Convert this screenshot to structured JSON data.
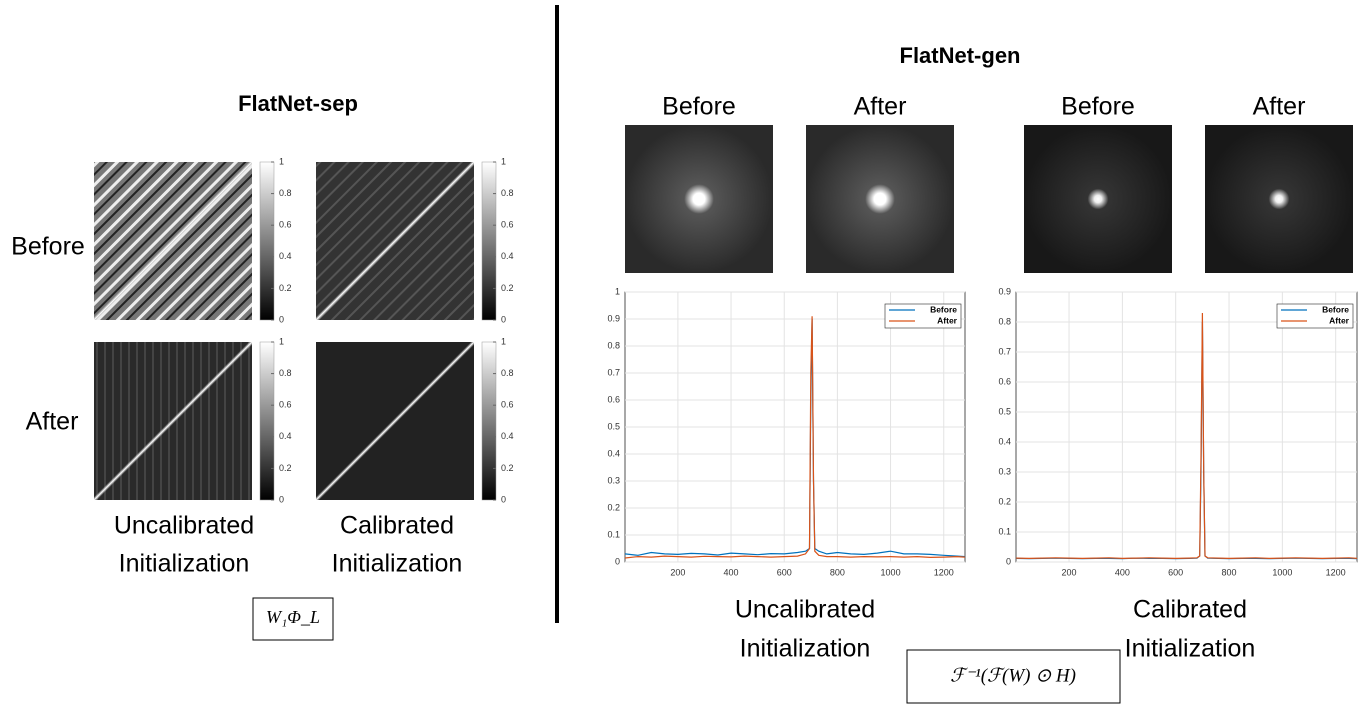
{
  "left": {
    "title": "FlatNet-sep",
    "row_labels": [
      "Before",
      "After"
    ],
    "col_labels": [
      [
        "Uncalibrated",
        "Initialization"
      ],
      [
        "Calibrated",
        "Initialization"
      ]
    ],
    "colorbar_ticks": [
      0,
      0.2,
      0.4,
      0.6,
      0.8,
      1
    ],
    "formula": "W₁Φ_L"
  },
  "right": {
    "title": "FlatNet-gen",
    "image_labels": [
      "Before",
      "After",
      "Before",
      "After"
    ],
    "col_labels": [
      [
        "Uncalibrated",
        "Initialization"
      ],
      [
        "Calibrated",
        "Initialization"
      ]
    ],
    "formula": "ℱ⁻¹(ℱ(W) ⊙ H)"
  },
  "chart_data": [
    {
      "type": "line",
      "x": [
        1,
        50,
        100,
        150,
        200,
        250,
        300,
        350,
        400,
        450,
        500,
        550,
        600,
        650,
        680,
        695,
        700,
        705,
        710,
        715,
        730,
        760,
        800,
        850,
        900,
        950,
        1000,
        1050,
        1100,
        1150,
        1200,
        1250,
        1280
      ],
      "series": [
        {
          "name": "Before",
          "color": "#0072bd",
          "values": [
            0.03,
            0.025,
            0.035,
            0.03,
            0.028,
            0.032,
            0.03,
            0.026,
            0.033,
            0.03,
            0.027,
            0.031,
            0.03,
            0.035,
            0.04,
            0.05,
            0.6,
            0.9,
            0.3,
            0.05,
            0.04,
            0.03,
            0.035,
            0.03,
            0.028,
            0.033,
            0.04,
            0.03,
            0.03,
            0.028,
            0.025,
            0.022,
            0.02
          ]
        },
        {
          "name": "After",
          "color": "#d95319",
          "values": [
            0.015,
            0.02,
            0.018,
            0.022,
            0.02,
            0.018,
            0.021,
            0.02,
            0.019,
            0.022,
            0.02,
            0.018,
            0.02,
            0.022,
            0.03,
            0.05,
            0.7,
            0.91,
            0.3,
            0.04,
            0.025,
            0.02,
            0.02,
            0.018,
            0.02,
            0.019,
            0.02,
            0.018,
            0.02,
            0.017,
            0.018,
            0.02,
            0.018
          ]
        }
      ],
      "xlim": [
        1,
        1280
      ],
      "ylim": [
        0,
        1
      ],
      "xticks": [
        200,
        400,
        600,
        800,
        1000,
        1200
      ],
      "yticks": [
        0,
        0.1,
        0.2,
        0.3,
        0.4,
        0.5,
        0.6,
        0.7,
        0.8,
        0.9,
        1
      ],
      "grid": true,
      "legend": "upper right"
    },
    {
      "type": "line",
      "x": [
        1,
        50,
        100,
        150,
        200,
        250,
        300,
        350,
        400,
        450,
        500,
        550,
        600,
        650,
        680,
        690,
        695,
        700,
        705,
        710,
        720,
        760,
        800,
        850,
        900,
        950,
        1000,
        1050,
        1100,
        1150,
        1200,
        1250,
        1280
      ],
      "series": [
        {
          "name": "Before",
          "color": "#0072bd",
          "values": [
            0.012,
            0.011,
            0.012,
            0.013,
            0.012,
            0.011,
            0.012,
            0.012,
            0.011,
            0.013,
            0.012,
            0.012,
            0.011,
            0.012,
            0.013,
            0.02,
            0.3,
            0.8,
            0.3,
            0.02,
            0.013,
            0.012,
            0.011,
            0.012,
            0.012,
            0.011,
            0.012,
            0.013,
            0.012,
            0.011,
            0.012,
            0.012,
            0.011
          ]
        },
        {
          "name": "After",
          "color": "#d95319",
          "values": [
            0.013,
            0.012,
            0.013,
            0.014,
            0.013,
            0.012,
            0.013,
            0.014,
            0.012,
            0.013,
            0.014,
            0.013,
            0.012,
            0.013,
            0.014,
            0.02,
            0.35,
            0.83,
            0.3,
            0.02,
            0.014,
            0.013,
            0.012,
            0.013,
            0.014,
            0.012,
            0.013,
            0.014,
            0.013,
            0.012,
            0.013,
            0.014,
            0.012
          ]
        }
      ],
      "xlim": [
        1,
        1280
      ],
      "ylim": [
        0,
        0.9
      ],
      "xticks": [
        200,
        400,
        600,
        800,
        1000,
        1200
      ],
      "yticks": [
        0,
        0.1,
        0.2,
        0.3,
        0.4,
        0.5,
        0.6,
        0.7,
        0.8,
        0.9
      ],
      "grid": true,
      "legend": "upper right"
    }
  ]
}
